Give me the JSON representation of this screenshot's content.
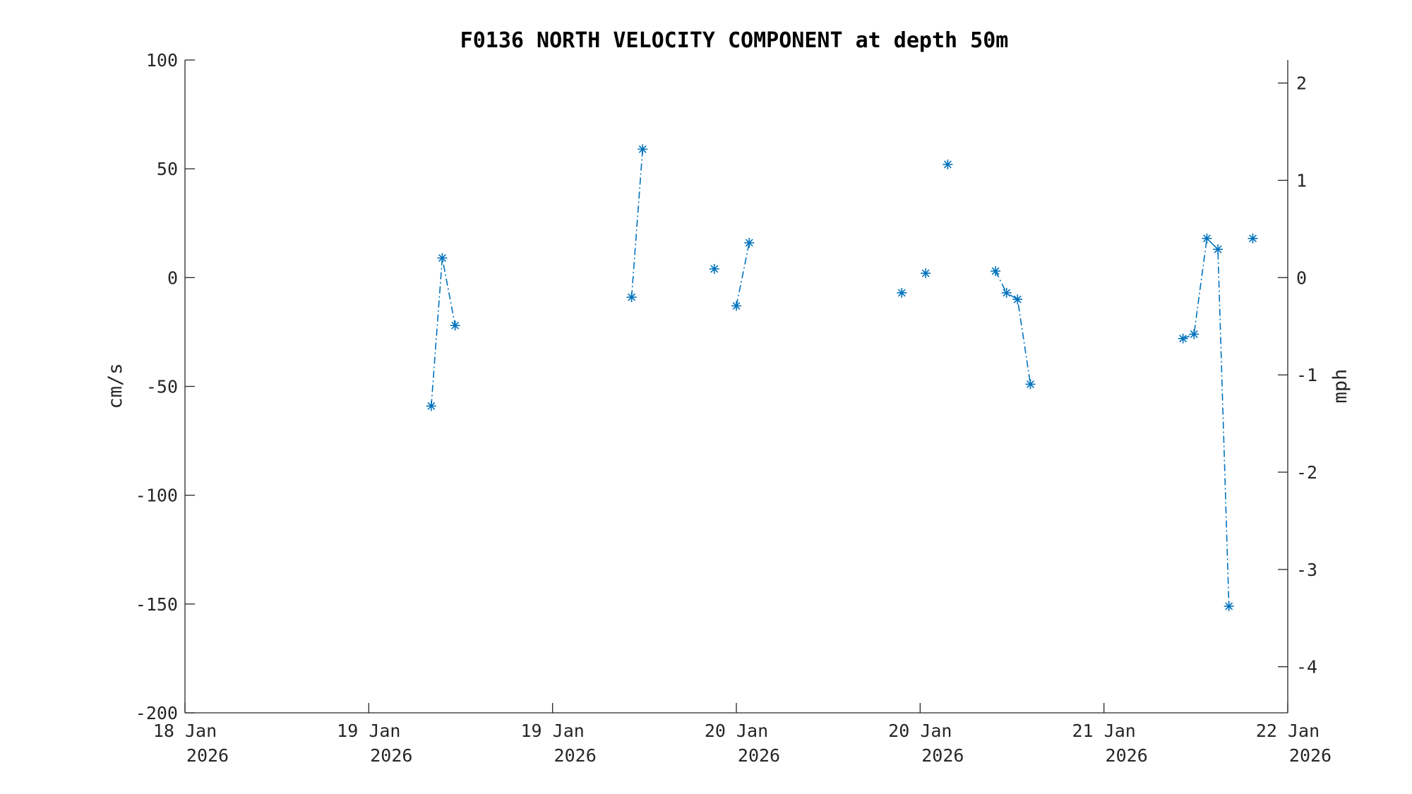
{
  "chart_data": {
    "type": "line",
    "title": "F0136 NORTH VELOCITY COMPONENT at depth 50m",
    "xlabel": "",
    "ylabel": "cm/s",
    "ylabel_right": "mph",
    "x_unit": "days",
    "xlim": [
      0,
      6
    ],
    "ylim": [
      -200,
      100
    ],
    "ylim_right_mph": [
      -4.474,
      2.237
    ],
    "grid": false,
    "legend": "none",
    "x_ticks": [
      {
        "v": 0,
        "line1": "18 Jan",
        "line2": "2026"
      },
      {
        "v": 1,
        "line1": "19 Jan",
        "line2": "2026"
      },
      {
        "v": 2,
        "line1": "19 Jan",
        "line2": "2026"
      },
      {
        "v": 3,
        "line1": "20 Jan",
        "line2": "2026"
      },
      {
        "v": 4,
        "line1": "20 Jan",
        "line2": "2026"
      },
      {
        "v": 5,
        "line1": "21 Jan",
        "line2": "2026"
      },
      {
        "v": 6,
        "line1": "22 Jan",
        "line2": "2026"
      }
    ],
    "y_ticks": [
      100,
      50,
      0,
      -50,
      -100,
      -150,
      -200
    ],
    "y_ticks_right": [
      2,
      1,
      0,
      -1,
      -2,
      -3,
      -4
    ],
    "series": [
      {
        "color": "#0072BD",
        "marker": "asterisk",
        "linestyle": "dash-dot",
        "segments": [
          [
            [
              1.34,
              -59
            ],
            [
              1.4,
              9
            ],
            [
              1.47,
              -22
            ]
          ],
          [
            [
              2.43,
              -9
            ],
            [
              2.49,
              59
            ]
          ],
          [
            [
              2.88,
              4
            ]
          ],
          [
            [
              3.0,
              -13
            ],
            [
              3.07,
              16
            ]
          ],
          [
            [
              3.9,
              -7
            ]
          ],
          [
            [
              4.03,
              2
            ]
          ],
          [
            [
              4.15,
              52
            ]
          ],
          [
            [
              4.41,
              3
            ],
            [
              4.47,
              -7
            ],
            [
              4.53,
              -10
            ],
            [
              4.6,
              -49
            ]
          ],
          [
            [
              5.43,
              -28
            ],
            [
              5.49,
              -26
            ],
            [
              5.56,
              18
            ],
            [
              5.62,
              13
            ],
            [
              5.68,
              -151
            ]
          ],
          [
            [
              5.81,
              18
            ]
          ]
        ]
      }
    ]
  }
}
